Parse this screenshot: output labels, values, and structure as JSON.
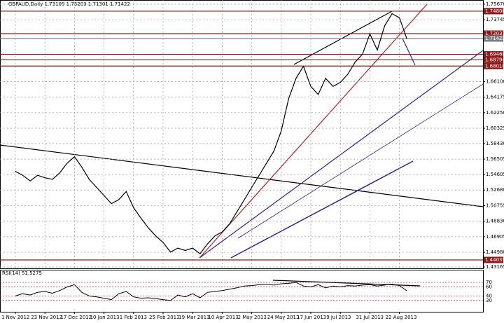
{
  "chart_data": {
    "type": "line",
    "title": "GBPAUD,Daily  1.73109 1.73203 1.71301 1.71422",
    "categories": [
      "1 Nov 2012",
      null,
      null,
      null,
      "23 Nov 2012",
      null,
      null,
      null,
      "17 Dec 2012",
      null,
      null,
      null,
      "10 Jan 2013",
      null,
      null,
      null,
      "1 Feb 2013",
      null,
      null,
      null,
      "25 Feb 2013",
      null,
      null,
      null,
      "19 Mar 2013",
      null,
      null,
      null,
      "10 Apr 2013",
      null,
      null,
      null,
      "2 May 2013",
      null,
      null,
      null,
      "24 May 2013",
      null,
      null,
      null,
      "17 Jun 2013",
      null,
      null,
      null,
      "9 Jul 2013",
      null,
      null,
      null,
      "31 Jul 2013",
      null,
      null,
      null,
      "22 Aug 2013",
      null
    ],
    "series": [
      {
        "name": "GBPAUD",
        "color": "#000000",
        "values": [
          1.55,
          1.545,
          1.538,
          1.545,
          1.542,
          1.54,
          1.548,
          1.56,
          1.568,
          1.555,
          1.54,
          1.53,
          1.52,
          1.51,
          1.515,
          1.525,
          1.505,
          1.492,
          1.48,
          1.47,
          1.462,
          1.45,
          1.455,
          1.452,
          1.455,
          1.448,
          1.46,
          1.47,
          1.475,
          1.485,
          1.5,
          1.515,
          1.53,
          1.545,
          1.56,
          1.575,
          1.6,
          1.64,
          1.665,
          1.68,
          1.655,
          1.645,
          1.665,
          1.655,
          1.66,
          1.67,
          1.685,
          1.695,
          1.72,
          1.7,
          1.73,
          1.745,
          1.74,
          1.714
        ]
      }
    ],
    "ylim": [
      1.42993,
      1.7619
    ],
    "yticks": [
      {
        "value": 1.7567,
        "label": "1.75670"
      },
      {
        "value": 1.73745,
        "label": "1.73745"
      },
      {
        "value": 1.661,
        "label": "1.66100"
      },
      {
        "value": 1.64175,
        "label": "1.64175"
      },
      {
        "value": 1.6225,
        "label": "1.62250"
      },
      {
        "value": 1.60325,
        "label": "1.60325"
      },
      {
        "value": 1.5843,
        "label": "1.58430"
      },
      {
        "value": 1.56505,
        "label": "1.56505"
      },
      {
        "value": 1.54605,
        "label": "1.54605"
      },
      {
        "value": 1.5268,
        "label": "1.52680"
      },
      {
        "value": 1.50755,
        "label": "1.50755"
      },
      {
        "value": 1.4883,
        "label": "1.48830"
      },
      {
        "value": 1.46905,
        "label": "1.46905"
      },
      {
        "value": 1.4498,
        "label": "1.44980"
      },
      {
        "value": 1.43165,
        "label": "1.43165"
      }
    ],
    "grid": true,
    "levels": [
      {
        "value": 1.74808,
        "color": "#8b1a1a"
      },
      {
        "value": 1.72031,
        "color": "#8b1a1a"
      },
      {
        "value": 1.71422,
        "color": "#7f7f7f"
      },
      {
        "value": 1.69468,
        "color": "#8b1a1a"
      },
      {
        "value": 1.68794,
        "color": "#8b1a1a"
      },
      {
        "value": 1.68018,
        "color": "#8b1a1a"
      },
      {
        "value": 1.44035,
        "color": "#8b1a1a"
      }
    ],
    "indicator": {
      "title": "RSI(14) 51.5275",
      "color": "#000000",
      "values": [
        40,
        45,
        42,
        48,
        50,
        46,
        52,
        60,
        65,
        48,
        40,
        38,
        35,
        32,
        45,
        50,
        38,
        35,
        36,
        34,
        32,
        30,
        42,
        38,
        45,
        36,
        48,
        50,
        52,
        55,
        58,
        62,
        63,
        65,
        66,
        64,
        67,
        68,
        70,
        62,
        60,
        65,
        58,
        62,
        60,
        63,
        62,
        64,
        65,
        62,
        64,
        66,
        63,
        51.5275
      ],
      "ylim": [
        5,
        98
      ],
      "yticks": [
        70,
        60,
        40,
        30
      ]
    }
  }
}
